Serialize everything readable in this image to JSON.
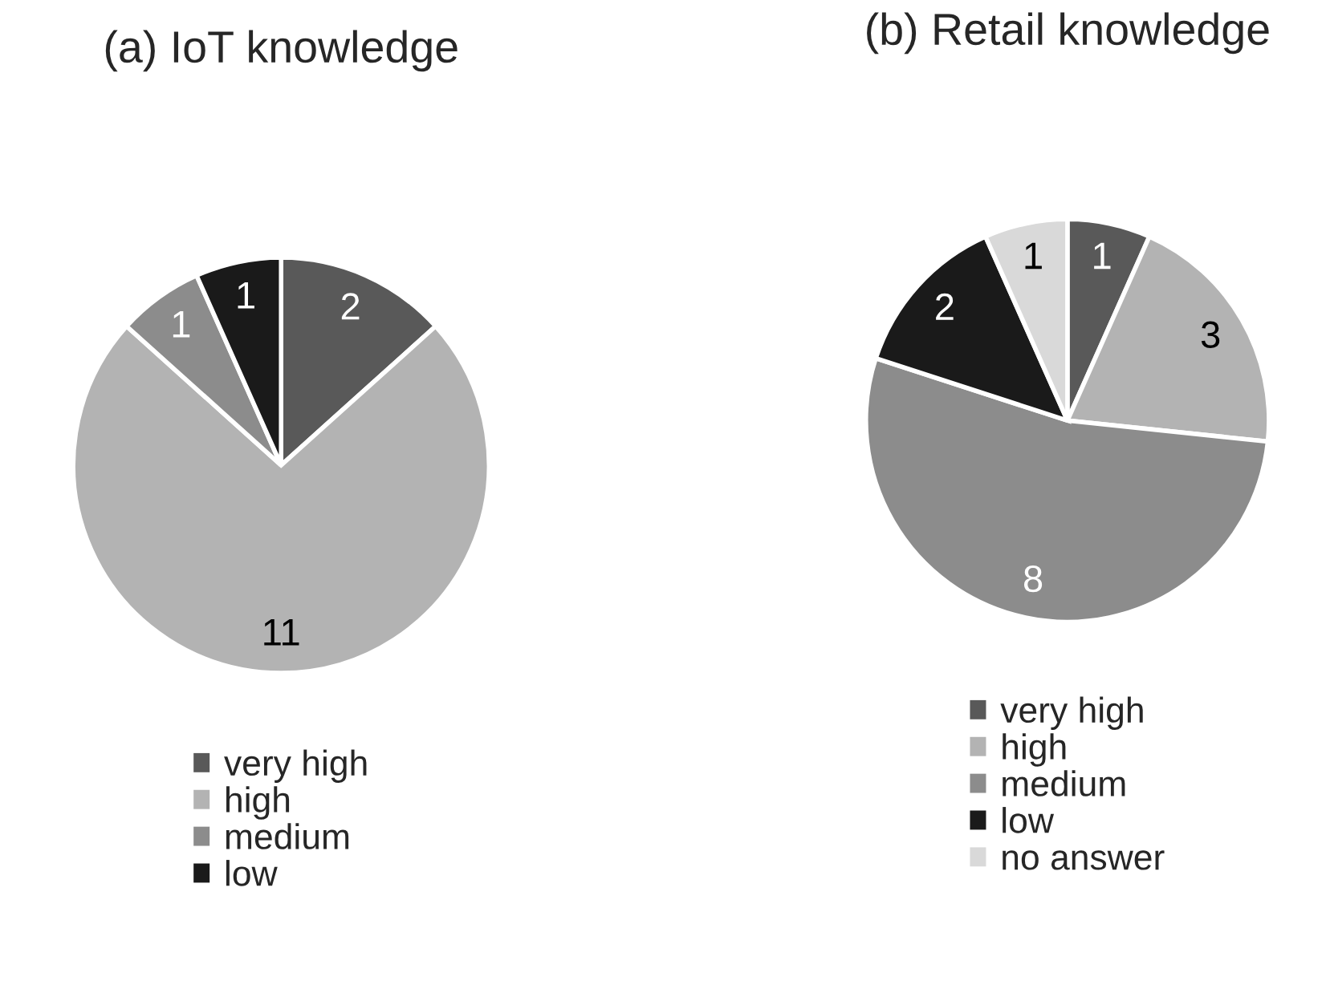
{
  "chart_data": [
    {
      "type": "pie",
      "title": "(a) IoT knowledge",
      "categories": [
        "very high",
        "high",
        "medium",
        "low"
      ],
      "values": [
        2,
        11,
        1,
        1
      ],
      "colors": [
        "#595959",
        "#b3b3b3",
        "#8c8c8c",
        "#1a1a1a"
      ],
      "data_labels": true,
      "legend": "bottom"
    },
    {
      "type": "pie",
      "title": "(b) Retail knowledge",
      "categories": [
        "very high",
        "high",
        "medium",
        "low",
        "no answer"
      ],
      "values": [
        1,
        3,
        8,
        2,
        1
      ],
      "colors": [
        "#595959",
        "#b3b3b3",
        "#8c8c8c",
        "#1a1a1a",
        "#d9d9d9"
      ],
      "data_labels": true,
      "legend": "bottom"
    }
  ]
}
